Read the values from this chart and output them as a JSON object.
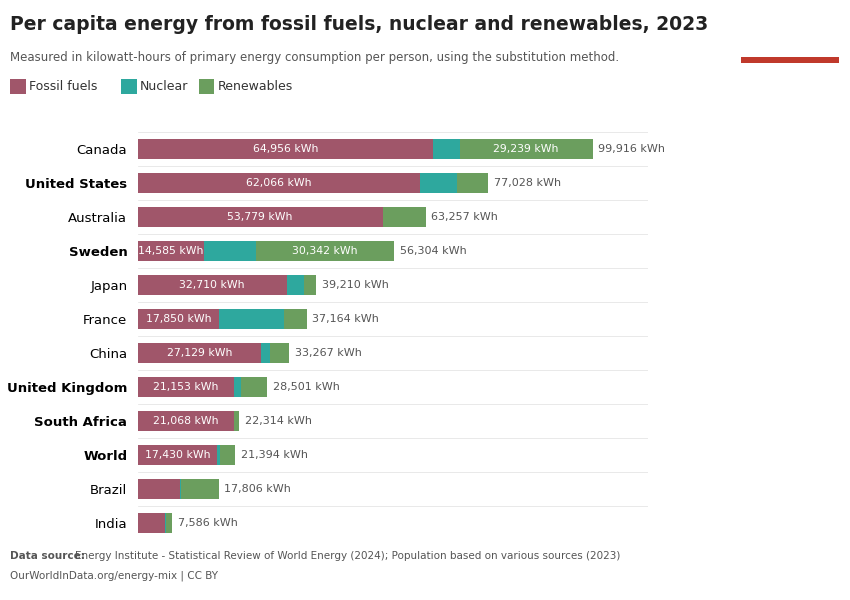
{
  "title": "Per capita energy from fossil fuels, nuclear and renewables, 2023",
  "subtitle": "Measured in kilowatt-hours of primary energy consumption per person, using the substitution method.",
  "countries": [
    "Canada",
    "United States",
    "Australia",
    "Sweden",
    "Japan",
    "France",
    "China",
    "United Kingdom",
    "South Africa",
    "World",
    "Brazil",
    "India"
  ],
  "fossil": [
    64956,
    62066,
    53779,
    14585,
    32710,
    17850,
    27129,
    21153,
    21068,
    17430,
    9200,
    5900
  ],
  "nuclear": [
    5721,
    7962,
    0,
    11377,
    3800,
    14364,
    1938,
    1548,
    0,
    694,
    200,
    230
  ],
  "totals_raw": [
    99916,
    77028,
    63257,
    56304,
    39210,
    37164,
    33267,
    28501,
    22314,
    21394,
    17806,
    7586
  ],
  "total_labels": [
    "99,916 kWh",
    "77,028 kWh",
    "63,257 kWh",
    "56,304 kWh",
    "39,210 kWh",
    "37,164 kWh",
    "33,267 kWh",
    "28,501 kWh",
    "22,314 kWh",
    "21,394 kWh",
    "17,806 kWh",
    "7,586 kWh"
  ],
  "fossil_labels": [
    "64,956 kWh",
    "62,066 kWh",
    "53,779 kWh",
    "14,585 kWh",
    "32,710 kWh",
    "17,850 kWh",
    "27,129 kWh",
    "21,153 kWh",
    "21,068 kWh",
    "17,430 kWh",
    "",
    ""
  ],
  "renewables_labels_inside": [
    "29,239 kWh",
    "",
    "",
    "30,342 kWh",
    "",
    "",
    "",
    "",
    "",
    "",
    "",
    ""
  ],
  "color_fossil": "#a0566a",
  "color_nuclear": "#2ea89e",
  "color_renewables": "#6b9e5e",
  "bg_color": "#ffffff",
  "legend_labels": [
    "Fossil fuels",
    "Nuclear",
    "Renewables"
  ],
  "bold_countries": [
    "United States",
    "Sweden",
    "United Kingdom",
    "South Africa",
    "World"
  ],
  "owid_bg": "#1a3a5c",
  "owid_accent": "#c0392b",
  "datasource_line1": "Data source: Energy Institute - Statistical Review of World Energy (2024); Population based on various sources (2023)",
  "datasource_line2": "OurWorldInData.org/energy-mix | CC BY"
}
